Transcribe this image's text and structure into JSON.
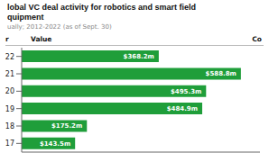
{
  "chart_data": {
    "type": "bar",
    "orientation": "horizontal",
    "title": [
      "lobal VC deal activity for robotics and smart field",
      "quipment"
    ],
    "subtitle": "ually; 2012-2022 (as of Sept. 30)",
    "annotations": [
      "r",
      "Value",
      "Co"
    ],
    "categories": [
      "22",
      "21",
      "20",
      "19",
      "18",
      "17"
    ],
    "values": [
      368.2,
      588.8,
      495.3,
      484.9,
      175.2,
      143.5
    ],
    "value_labels": [
      "$368.2m",
      "$588.8m",
      "$495.3m",
      "$484.9m",
      "$175.2m",
      "$143.5m"
    ],
    "data_labels": true,
    "color": "#1f9e3a",
    "xlim": [
      0,
      640
    ],
    "tick_labels": "y",
    "grid": false
  }
}
